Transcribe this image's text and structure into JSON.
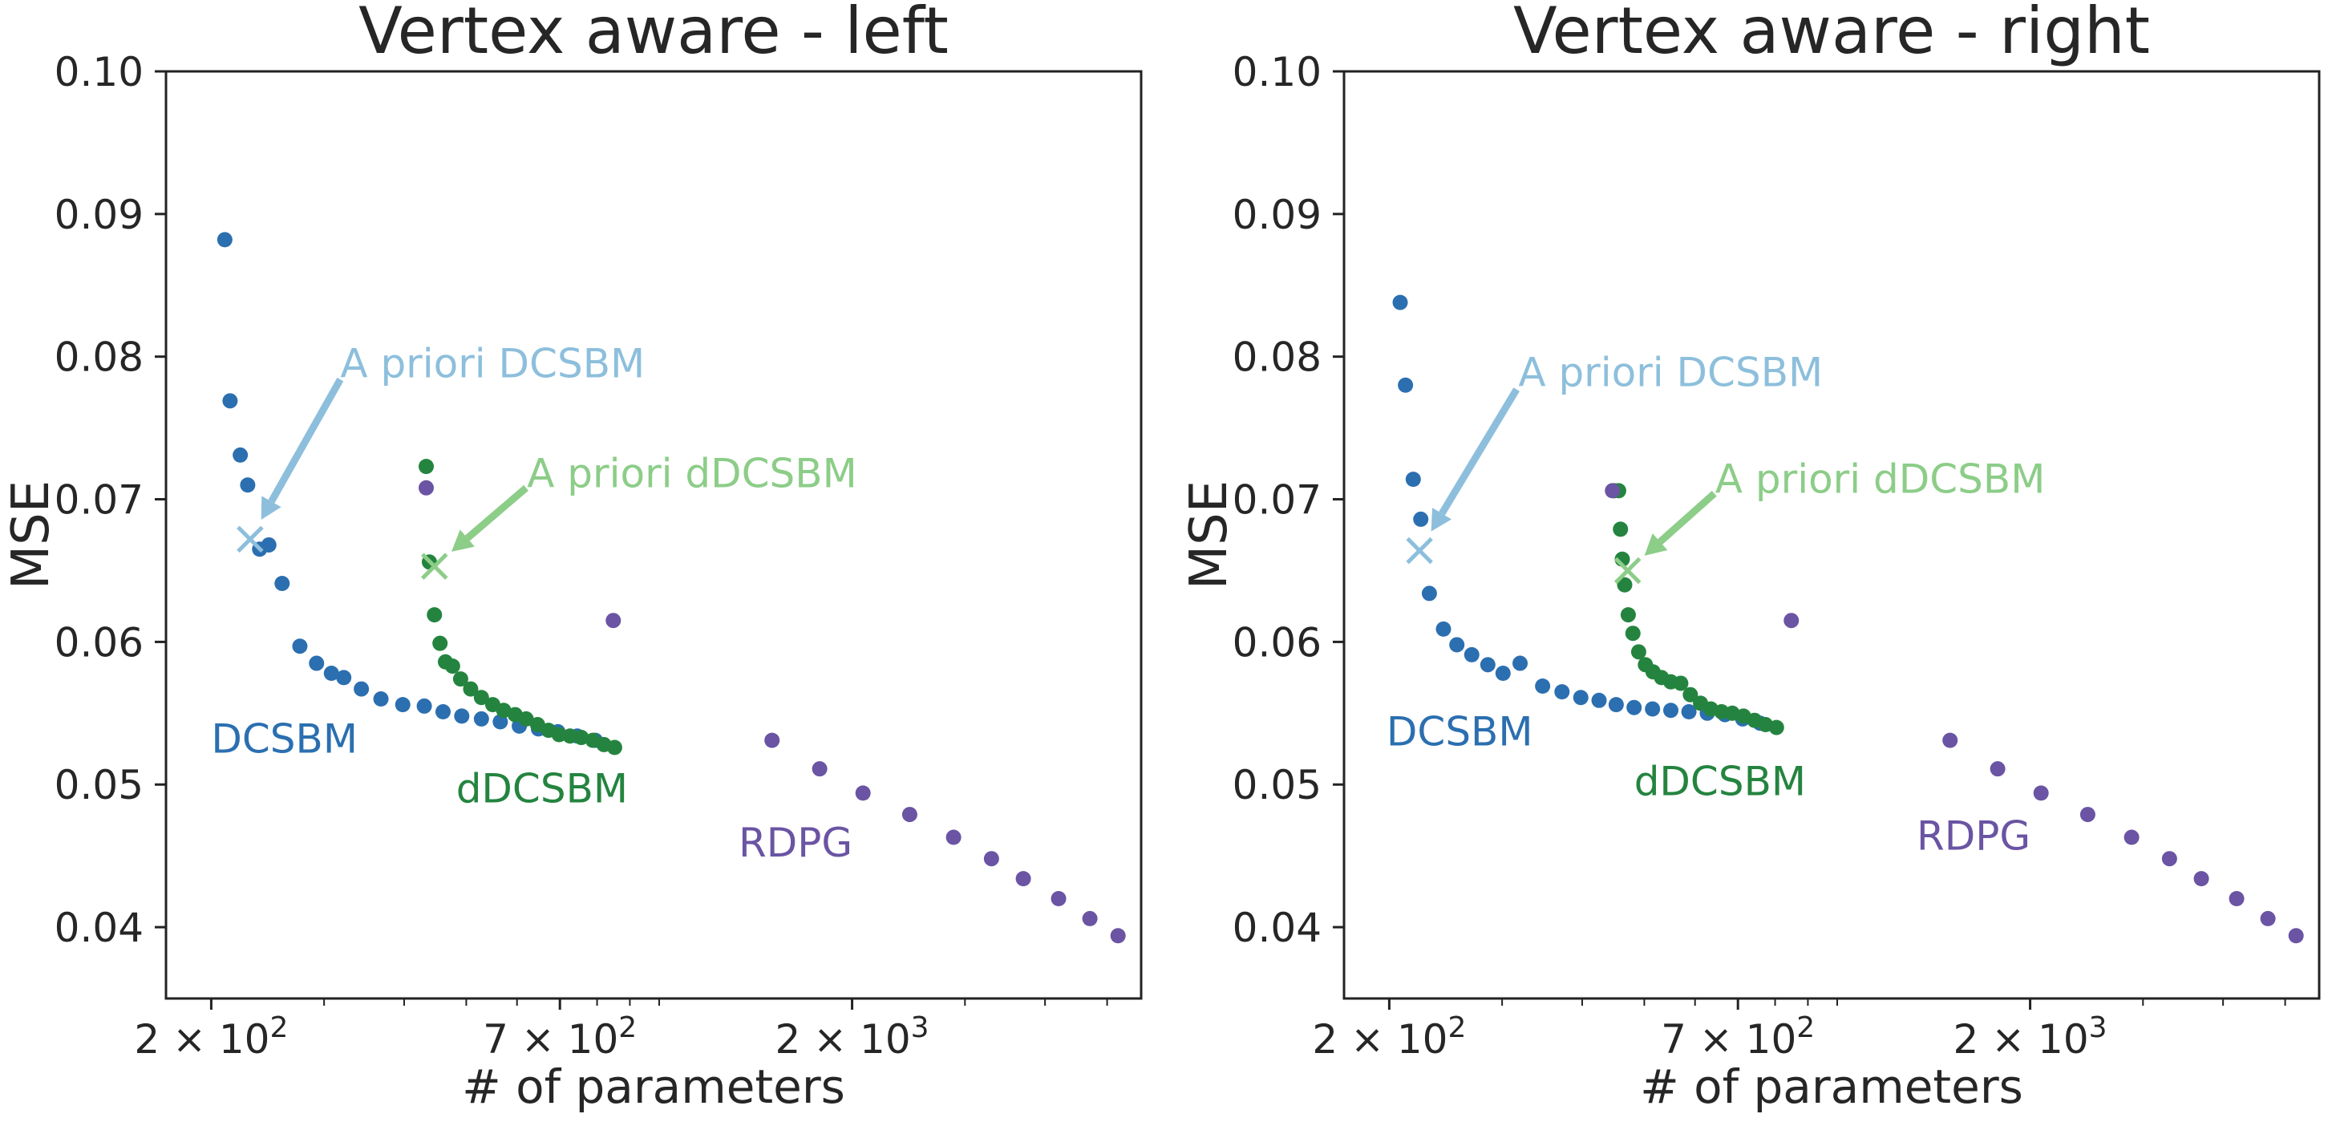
{
  "colors": {
    "dcsbm": "#2b6fb0",
    "ddcsbm": "#24843f",
    "rdpg": "#6a54a3",
    "apriori_dcsbm": "#8dbfdc",
    "apriori_ddcsbm": "#8ccd88",
    "axis": "#222222",
    "text": "#262626"
  },
  "chart_data": [
    {
      "type": "scatter",
      "title": "Vertex aware - left",
      "xlabel": "# of parameters",
      "ylabel": "MSE",
      "xscale": "log",
      "xlim": [
        170,
        5650
      ],
      "ylim": [
        0.035,
        0.1
      ],
      "xtick_labels": [
        {
          "value": 200,
          "label": "2 × 10²"
        },
        {
          "value": 700,
          "label": "7 × 10²"
        },
        {
          "value": 2000,
          "label": "2 × 10³"
        }
      ],
      "xminor_ticks": [
        300,
        400,
        500,
        600,
        800,
        900,
        1000,
        3000,
        4000,
        5000
      ],
      "yticks": [
        0.04,
        0.05,
        0.06,
        0.07,
        0.08,
        0.09,
        0.1
      ],
      "ytick_labels": [
        "0.04",
        "0.05",
        "0.06",
        "0.07",
        "0.08",
        "0.09",
        "0.10"
      ],
      "grid": false,
      "series": [
        {
          "name": "DCSBM",
          "color_key": "dcsbm",
          "label_at": [
            200,
            0.0532
          ],
          "points": [
            [
              210,
              0.0882
            ],
            [
              214,
              0.0769
            ],
            [
              222,
              0.0731
            ],
            [
              228,
              0.071
            ],
            [
              238,
              0.0665
            ],
            [
              246,
              0.0668
            ],
            [
              258,
              0.0641
            ],
            [
              275,
              0.0597
            ],
            [
              292,
              0.0585
            ],
            [
              308,
              0.0578
            ],
            [
              322,
              0.0575
            ],
            [
              343,
              0.0567
            ],
            [
              368,
              0.056
            ],
            [
              398,
              0.0556
            ],
            [
              430,
              0.0555
            ],
            [
              460,
              0.0551
            ],
            [
              492,
              0.0548
            ],
            [
              528,
              0.0546
            ],
            [
              565,
              0.0544
            ],
            [
              605,
              0.0541
            ],
            [
              648,
              0.0539
            ],
            [
              695,
              0.0537
            ],
            [
              745,
              0.0534
            ],
            [
              795,
              0.0531
            ]
          ]
        },
        {
          "name": "dDCSBM",
          "color_key": "ddcsbm",
          "label_at": [
            482,
            0.0497
          ],
          "points": [
            [
              433,
              0.0723
            ],
            [
              438,
              0.0656
            ],
            [
              446,
              0.0619
            ],
            [
              455,
              0.0599
            ],
            [
              464,
              0.0586
            ],
            [
              476,
              0.0583
            ],
            [
              490,
              0.0574
            ],
            [
              508,
              0.0567
            ],
            [
              528,
              0.0561
            ],
            [
              550,
              0.0556
            ],
            [
              572,
              0.0552
            ],
            [
              596,
              0.0549
            ],
            [
              620,
              0.0546
            ],
            [
              646,
              0.0542
            ],
            [
              672,
              0.0538
            ],
            [
              698,
              0.0535
            ],
            [
              726,
              0.0534
            ],
            [
              756,
              0.0533
            ],
            [
              788,
              0.0531
            ],
            [
              820,
              0.0528
            ],
            [
              852,
              0.0526
            ]
          ]
        },
        {
          "name": "RDPG",
          "color_key": "rdpg",
          "label_at": [
            1330,
            0.0459
          ],
          "points": [
            [
              433,
              0.0708
            ],
            [
              848,
              0.0615
            ],
            [
              1500,
              0.0531
            ],
            [
              1780,
              0.0511
            ],
            [
              2080,
              0.0494
            ],
            [
              2460,
              0.0479
            ],
            [
              2880,
              0.0463
            ],
            [
              3300,
              0.0448
            ],
            [
              3700,
              0.0434
            ],
            [
              4200,
              0.042
            ],
            [
              4700,
              0.0406
            ],
            [
              5200,
              0.0394
            ]
          ]
        }
      ],
      "annotations": [
        {
          "text": "A priori DCSBM",
          "color_key": "apriori_dcsbm",
          "marker_at": [
            230,
            0.0672
          ],
          "arrow_from": [
            318,
            0.0784
          ],
          "text_at": [
            318,
            0.0795
          ]
        },
        {
          "text": "A priori dDCSBM",
          "color_key": "apriori_ddcsbm",
          "marker_at": [
            446,
            0.0653
          ],
          "arrow_from": [
            620,
            0.0708
          ],
          "text_at": [
            622,
            0.0718
          ]
        }
      ]
    },
    {
      "type": "scatter",
      "title": "Vertex aware - right",
      "xlabel": "# of parameters",
      "ylabel": "MSE",
      "xscale": "log",
      "xlim": [
        170,
        5650
      ],
      "ylim": [
        0.035,
        0.1
      ],
      "xtick_labels": [
        {
          "value": 200,
          "label": "2 × 10²"
        },
        {
          "value": 700,
          "label": "7 × 10²"
        },
        {
          "value": 2000,
          "label": "2 × 10³"
        }
      ],
      "xminor_ticks": [
        300,
        400,
        500,
        600,
        800,
        900,
        1000,
        3000,
        4000,
        5000
      ],
      "yticks": [
        0.04,
        0.05,
        0.06,
        0.07,
        0.08,
        0.09,
        0.1
      ],
      "ytick_labels": [
        "0.04",
        "0.05",
        "0.06",
        "0.07",
        "0.08",
        "0.09",
        "0.10"
      ],
      "grid": false,
      "series": [
        {
          "name": "DCSBM",
          "color_key": "dcsbm",
          "label_at": [
            198,
            0.0537
          ],
          "points": [
            [
              208,
              0.0838
            ],
            [
              212,
              0.078
            ],
            [
              218,
              0.0714
            ],
            [
              224,
              0.0686
            ],
            [
              231,
              0.0634
            ],
            [
              243,
              0.0609
            ],
            [
              255,
              0.0598
            ],
            [
              269,
              0.0591
            ],
            [
              285,
              0.0584
            ],
            [
              301,
              0.0578
            ],
            [
              320,
              0.0585
            ],
            [
              347,
              0.0569
            ],
            [
              372,
              0.0565
            ],
            [
              398,
              0.0561
            ],
            [
              425,
              0.0559
            ],
            [
              452,
              0.0556
            ],
            [
              482,
              0.0554
            ],
            [
              515,
              0.0553
            ],
            [
              550,
              0.0552
            ],
            [
              587,
              0.0551
            ],
            [
              627,
              0.055
            ],
            [
              668,
              0.0549
            ],
            [
              712,
              0.0546
            ],
            [
              758,
              0.0543
            ]
          ]
        },
        {
          "name": "dDCSBM",
          "color_key": "ddcsbm",
          "label_at": [
            482,
            0.0502
          ],
          "points": [
            [
              449,
              0.0706
            ],
            [
              456,
              0.0706
            ],
            [
              459,
              0.0679
            ],
            [
              462,
              0.0658
            ],
            [
              466,
              0.064
            ],
            [
              472,
              0.0619
            ],
            [
              480,
              0.0606
            ],
            [
              490,
              0.0593
            ],
            [
              502,
              0.0584
            ],
            [
              516,
              0.0579
            ],
            [
              532,
              0.0575
            ],
            [
              550,
              0.0572
            ],
            [
              570,
              0.0571
            ],
            [
              590,
              0.0563
            ],
            [
              612,
              0.0557
            ],
            [
              635,
              0.0553
            ],
            [
              660,
              0.0551
            ],
            [
              686,
              0.055
            ],
            [
              714,
              0.0548
            ],
            [
              743,
              0.0545
            ],
            [
              773,
              0.0542
            ],
            [
              804,
              0.054
            ]
          ]
        },
        {
          "name": "RDPG",
          "color_key": "rdpg",
          "label_at": [
            1330,
            0.0464
          ],
          "points": [
            [
              446,
              0.0706
            ],
            [
              848,
              0.0615
            ],
            [
              1500,
              0.0531
            ],
            [
              1780,
              0.0511
            ],
            [
              2080,
              0.0494
            ],
            [
              2460,
              0.0479
            ],
            [
              2880,
              0.0463
            ],
            [
              3300,
              0.0448
            ],
            [
              3700,
              0.0434
            ],
            [
              4200,
              0.042
            ],
            [
              4700,
              0.0406
            ],
            [
              5200,
              0.0394
            ]
          ]
        }
      ],
      "annotations": [
        {
          "text": "A priori DCSBM",
          "color_key": "apriori_dcsbm",
          "marker_at": [
            223,
            0.0664
          ],
          "arrow_from": [
            316,
            0.0777
          ],
          "text_at": [
            318,
            0.0789
          ]
        },
        {
          "text": "A priori dDCSBM",
          "color_key": "apriori_ddcsbm",
          "marker_at": [
            471,
            0.065
          ],
          "arrow_from": [
            643,
            0.0704
          ],
          "text_at": [
            645,
            0.0714
          ]
        }
      ]
    }
  ]
}
